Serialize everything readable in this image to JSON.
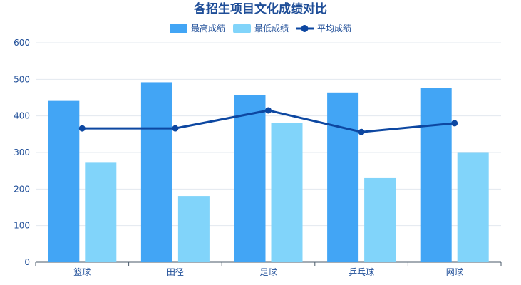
{
  "chart_data": {
    "type": "bar",
    "title": "各招生项目文化成绩对比",
    "categories": [
      "篮球",
      "田径",
      "足球",
      "乒乓球",
      "网球"
    ],
    "series": [
      {
        "name": "最高成绩",
        "type": "bar",
        "color": "#42a5f5",
        "values": [
          441,
          492,
          457,
          464,
          476
        ]
      },
      {
        "name": "最低成绩",
        "type": "bar",
        "color": "#81d4fa",
        "values": [
          272,
          181,
          380,
          230,
          299
        ]
      },
      {
        "name": "平均成绩",
        "type": "line",
        "color": "#0d47a1",
        "values": [
          366,
          366,
          415,
          356,
          380
        ]
      }
    ],
    "ylim": [
      0,
      600
    ],
    "yticks": [
      0,
      100,
      200,
      300,
      400,
      500,
      600
    ],
    "xlabel": "",
    "ylabel": "",
    "grid": true,
    "legend": "top-center"
  }
}
